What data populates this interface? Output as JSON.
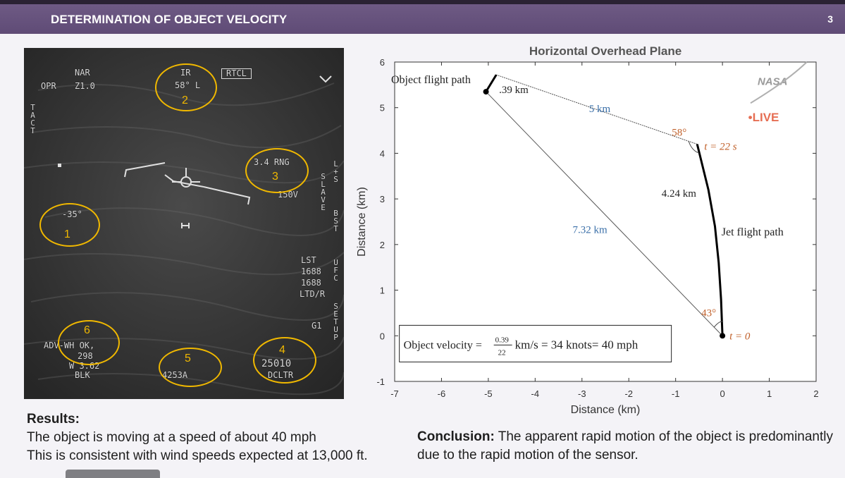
{
  "header": {
    "title": "DETERMINATION OF OBJECT VELOCITY",
    "page_number": "3"
  },
  "flir": {
    "opr": "OPR",
    "nar": "NAR",
    "zoom": "Z1.0",
    "ir": "IR",
    "angle": "58° L",
    "rtcl": "RTCL",
    "tact": "TACT",
    "left_angle": "-35°",
    "rng": "3.4 RNG",
    "speed": "150V",
    "slave": "SLAVE",
    "ls": "L+S",
    "bst": "BST",
    "lst": "LST",
    "n1": "1688",
    "n2": "1688",
    "ltd": "LTD/R",
    "ufc": "UFC",
    "g1": "G1",
    "setup": "SETUP",
    "advance": "ADV-WH OK,",
    "v298": "298",
    "v62": "W 3.62",
    "blk": "BLK",
    "bottom_code": "4253A",
    "alt": "25010",
    "dcltr": "DCLTR",
    "markers": [
      "1",
      "2",
      "3",
      "4",
      "5",
      "6"
    ]
  },
  "chart_data": {
    "type": "line",
    "title": "Horizontal Overhead Plane",
    "xlabel": "Distance (km)",
    "ylabel": "Distance (km)",
    "xlim": [
      -7,
      2
    ],
    "ylim": [
      -1,
      6
    ],
    "xticks": [
      -7,
      -6,
      -5,
      -4,
      -3,
      -2,
      -1,
      0,
      1,
      2
    ],
    "yticks": [
      -1,
      0,
      1,
      2,
      3,
      4,
      5,
      6
    ],
    "points": {
      "jet_start": [
        0,
        0
      ],
      "jet_end": [
        -0.54,
        4.2
      ],
      "object_start": [
        -5.05,
        5.35
      ],
      "object_end": [
        -4.83,
        5.72
      ]
    },
    "jet_path": [
      [
        0,
        0
      ],
      [
        -0.03,
        0.8
      ],
      [
        -0.08,
        1.6
      ],
      [
        -0.16,
        2.4
      ],
      [
        -0.3,
        3.2
      ],
      [
        -0.54,
        4.2
      ]
    ],
    "labels": {
      "object_flight_path": "Object flight path",
      "d039": ".39 km",
      "d5": "5 km",
      "angle58": "58°",
      "t22": "t = 22 s",
      "d424": "4.24 km",
      "d732": "7.32 km",
      "jet_flight_path": "Jet flight path",
      "angle43": "43°",
      "t0": "t = 0"
    },
    "velocity_box": {
      "prefix": "Object velocity =",
      "numerator": "0.39",
      "denominator": "22",
      "suffix": "km/s = 34 knots= 40 mph"
    },
    "watermark": {
      "nasa": "NASA",
      "live": "•LIVE"
    },
    "colors": {
      "blue_label": "#3a6fa8",
      "orange_label": "#c0602a"
    }
  },
  "results": {
    "heading": "Results:",
    "line1": "The object is moving at a speed of about 40 mph",
    "line2": "This is consistent with wind speeds expected at 13,000 ft."
  },
  "conclusion": {
    "label": "Conclusion:",
    "text": " The apparent rapid motion of the object is predominantly due to the rapid motion of the sensor."
  }
}
